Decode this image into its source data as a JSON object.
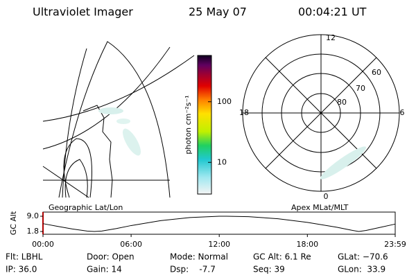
{
  "header": {
    "instrument": "Ultraviolet Imager",
    "date": "25 May 07",
    "time": "00:04:21 UT"
  },
  "colorbar": {
    "label": "photon cm⁻²s⁻¹",
    "scale": "log",
    "ylim": [
      3,
      580
    ],
    "yticks": [
      10,
      100
    ]
  },
  "maps": {
    "left_label": "Geographic Lat/Lon",
    "right_label": "Apex MLat/MLT"
  },
  "polar": {
    "mlt_labels": [
      "12",
      "6",
      "0",
      "18"
    ],
    "mlat_labels": [
      "60",
      "70",
      "80"
    ]
  },
  "chart_data": {
    "type": "line",
    "ylabel": "GC Alt",
    "color": "#000000",
    "x": [
      0,
      1,
      2,
      3,
      3.5,
      4,
      5,
      6,
      8,
      10,
      12,
      12.5,
      14,
      16,
      18,
      20,
      21,
      21.5,
      22,
      23,
      23.98
    ],
    "values": [
      5.5,
      4.2,
      3.0,
      2.0,
      1.8,
      2.0,
      3.2,
      4.6,
      6.9,
      8.4,
      9.0,
      9.0,
      8.8,
      7.8,
      6.1,
      3.8,
      2.4,
      1.8,
      2.3,
      3.8,
      5.3
    ],
    "xlim": [
      0,
      23.98
    ],
    "xticks": [
      {
        "value": 0,
        "label": "00:00"
      },
      {
        "value": 6,
        "label": "06:00"
      },
      {
        "value": 12,
        "label": "12:00"
      },
      {
        "value": 18,
        "label": "18:00"
      },
      {
        "value": 23.98,
        "label": "23:59"
      }
    ],
    "ylim": [
      1.8,
      9.0
    ],
    "yticks": [
      {
        "value": 9.0,
        "label": "9.0"
      },
      {
        "value": 1.8,
        "label": "1.8"
      }
    ]
  },
  "footer": {
    "rows": [
      [
        "Flt: LBHL",
        "Door: Open",
        "Mode: Normal",
        "GC Alt: 6.1 Re",
        "GLat: −70.6"
      ],
      [
        "IP: 36.0",
        "Gain: 14",
        "Dsp:    -7.7",
        "Seq: 39",
        "GLon:  33.9"
      ]
    ]
  }
}
